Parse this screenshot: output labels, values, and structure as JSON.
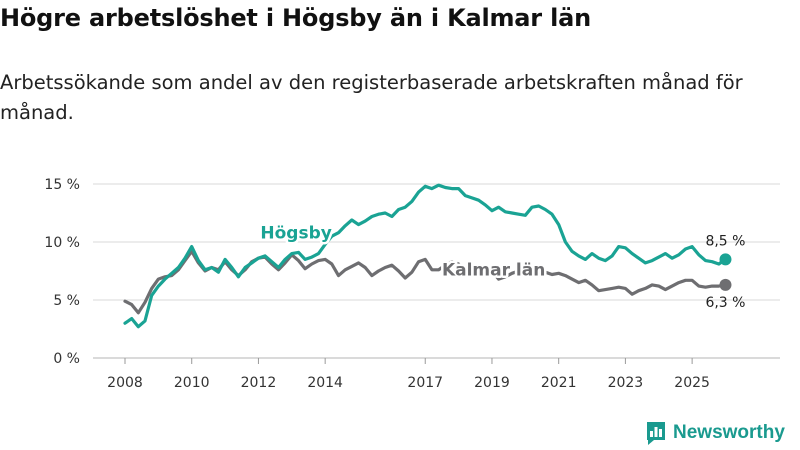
{
  "title": "Högre arbetslöshet i Högsby än i Kalmar län",
  "subtitle": "Arbetssökande som andel av den registerbaserade arbetskraften månad för månad.",
  "brand": {
    "name": "Newsworthy",
    "logo_icon": "bar-chart-logo-icon"
  },
  "colors": {
    "hogsby": "#1aa394",
    "kalmar": "#6e6e71",
    "grid": "#d9d9d9",
    "brand": "#1a9a8f"
  },
  "chart_data": {
    "type": "line",
    "title": "Högre arbetslöshet i Högsby än i Kalmar län",
    "xlabel": "",
    "ylabel": "",
    "xlim": [
      2008,
      2026.6
    ],
    "ylim": [
      0,
      15
    ],
    "y_ticks": [
      {
        "value": 0,
        "label": "0 %"
      },
      {
        "value": 5,
        "label": "5 %"
      },
      {
        "value": 10,
        "label": "10 %"
      },
      {
        "value": 15,
        "label": "15 %"
      }
    ],
    "x_ticks": [
      {
        "value": 2008,
        "label": "2008"
      },
      {
        "value": 2010,
        "label": "2010"
      },
      {
        "value": 2012,
        "label": "2012"
      },
      {
        "value": 2014,
        "label": "2014"
      },
      {
        "value": 2017,
        "label": "2017"
      },
      {
        "value": 2019,
        "label": "2019"
      },
      {
        "value": 2021,
        "label": "2021"
      },
      {
        "value": 2023,
        "label": "2023"
      },
      {
        "value": 2025,
        "label": "2025"
      }
    ],
    "grid": true,
    "series": [
      {
        "name": "Kalmar län",
        "label": "Kalmar län",
        "end_label": "6,3 %",
        "points": [
          [
            2008.0,
            4.9
          ],
          [
            2008.2,
            4.6
          ],
          [
            2008.4,
            3.9
          ],
          [
            2008.6,
            4.8
          ],
          [
            2008.8,
            6.0
          ],
          [
            2009.0,
            6.8
          ],
          [
            2009.2,
            7.0
          ],
          [
            2009.4,
            7.1
          ],
          [
            2009.6,
            7.6
          ],
          [
            2009.8,
            8.4
          ],
          [
            2010.0,
            9.2
          ],
          [
            2010.2,
            8.2
          ],
          [
            2010.4,
            7.5
          ],
          [
            2010.6,
            7.8
          ],
          [
            2010.8,
            7.6
          ],
          [
            2011.0,
            8.3
          ],
          [
            2011.2,
            7.6
          ],
          [
            2011.4,
            7.1
          ],
          [
            2011.6,
            7.6
          ],
          [
            2011.8,
            8.3
          ],
          [
            2012.0,
            8.6
          ],
          [
            2012.2,
            8.7
          ],
          [
            2012.4,
            8.1
          ],
          [
            2012.6,
            7.6
          ],
          [
            2012.8,
            8.2
          ],
          [
            2013.0,
            8.9
          ],
          [
            2013.2,
            8.4
          ],
          [
            2013.4,
            7.7
          ],
          [
            2013.6,
            8.1
          ],
          [
            2013.8,
            8.4
          ],
          [
            2014.0,
            8.5
          ],
          [
            2014.2,
            8.1
          ],
          [
            2014.4,
            7.1
          ],
          [
            2014.6,
            7.6
          ],
          [
            2014.8,
            7.9
          ],
          [
            2015.0,
            8.2
          ],
          [
            2015.2,
            7.8
          ],
          [
            2015.4,
            7.1
          ],
          [
            2015.6,
            7.5
          ],
          [
            2015.8,
            7.8
          ],
          [
            2016.0,
            8.0
          ],
          [
            2016.2,
            7.5
          ],
          [
            2016.4,
            6.9
          ],
          [
            2016.6,
            7.4
          ],
          [
            2016.8,
            8.3
          ],
          [
            2017.0,
            8.5
          ],
          [
            2017.2,
            7.6
          ],
          [
            2017.4,
            7.6
          ],
          [
            2017.6,
            8.0
          ],
          [
            2017.8,
            8.3
          ],
          [
            2018.0,
            8.1
          ],
          [
            2018.2,
            7.4
          ],
          [
            2018.4,
            7.1
          ],
          [
            2018.6,
            7.3
          ],
          [
            2018.8,
            7.6
          ],
          [
            2019.0,
            7.5
          ],
          [
            2019.2,
            6.8
          ],
          [
            2019.4,
            7.0
          ],
          [
            2019.6,
            7.3
          ],
          [
            2019.8,
            7.5
          ],
          [
            2020.0,
            7.6
          ],
          [
            2020.2,
            7.6
          ],
          [
            2020.4,
            7.5
          ],
          [
            2020.6,
            7.4
          ],
          [
            2020.8,
            7.2
          ],
          [
            2021.0,
            7.3
          ],
          [
            2021.2,
            7.1
          ],
          [
            2021.4,
            6.8
          ],
          [
            2021.6,
            6.5
          ],
          [
            2021.8,
            6.7
          ],
          [
            2022.0,
            6.3
          ],
          [
            2022.2,
            5.8
          ],
          [
            2022.4,
            5.9
          ],
          [
            2022.6,
            6.0
          ],
          [
            2022.8,
            6.1
          ],
          [
            2023.0,
            6.0
          ],
          [
            2023.2,
            5.5
          ],
          [
            2023.4,
            5.8
          ],
          [
            2023.6,
            6.0
          ],
          [
            2023.8,
            6.3
          ],
          [
            2024.0,
            6.2
          ],
          [
            2024.2,
            5.9
          ],
          [
            2024.4,
            6.2
          ],
          [
            2024.6,
            6.5
          ],
          [
            2024.8,
            6.7
          ],
          [
            2025.0,
            6.7
          ],
          [
            2025.2,
            6.2
          ],
          [
            2025.4,
            6.1
          ],
          [
            2025.6,
            6.2
          ],
          [
            2025.8,
            6.2
          ],
          [
            2026.0,
            6.3
          ]
        ]
      },
      {
        "name": "Högsby",
        "label": "Högsby",
        "end_label": "8,5 %",
        "points": [
          [
            2008.0,
            3.0
          ],
          [
            2008.2,
            3.4
          ],
          [
            2008.4,
            2.7
          ],
          [
            2008.6,
            3.2
          ],
          [
            2008.8,
            5.4
          ],
          [
            2009.0,
            6.2
          ],
          [
            2009.2,
            6.8
          ],
          [
            2009.4,
            7.3
          ],
          [
            2009.6,
            7.8
          ],
          [
            2009.8,
            8.6
          ],
          [
            2010.0,
            9.6
          ],
          [
            2010.2,
            8.4
          ],
          [
            2010.4,
            7.6
          ],
          [
            2010.6,
            7.8
          ],
          [
            2010.8,
            7.4
          ],
          [
            2011.0,
            8.5
          ],
          [
            2011.2,
            7.8
          ],
          [
            2011.4,
            7.0
          ],
          [
            2011.6,
            7.8
          ],
          [
            2011.8,
            8.2
          ],
          [
            2012.0,
            8.6
          ],
          [
            2012.2,
            8.8
          ],
          [
            2012.4,
            8.3
          ],
          [
            2012.6,
            7.8
          ],
          [
            2012.8,
            8.5
          ],
          [
            2013.0,
            9.0
          ],
          [
            2013.2,
            9.1
          ],
          [
            2013.4,
            8.5
          ],
          [
            2013.6,
            8.7
          ],
          [
            2013.8,
            9.0
          ],
          [
            2014.0,
            9.8
          ],
          [
            2014.2,
            10.5
          ],
          [
            2014.4,
            10.8
          ],
          [
            2014.6,
            11.4
          ],
          [
            2014.8,
            11.9
          ],
          [
            2015.0,
            11.5
          ],
          [
            2015.2,
            11.8
          ],
          [
            2015.4,
            12.2
          ],
          [
            2015.6,
            12.4
          ],
          [
            2015.8,
            12.5
          ],
          [
            2016.0,
            12.2
          ],
          [
            2016.2,
            12.8
          ],
          [
            2016.4,
            13.0
          ],
          [
            2016.6,
            13.5
          ],
          [
            2016.8,
            14.3
          ],
          [
            2017.0,
            14.8
          ],
          [
            2017.2,
            14.6
          ],
          [
            2017.4,
            14.9
          ],
          [
            2017.6,
            14.7
          ],
          [
            2017.8,
            14.6
          ],
          [
            2018.0,
            14.6
          ],
          [
            2018.2,
            14.0
          ],
          [
            2018.4,
            13.8
          ],
          [
            2018.6,
            13.6
          ],
          [
            2018.8,
            13.2
          ],
          [
            2019.0,
            12.7
          ],
          [
            2019.2,
            13.0
          ],
          [
            2019.4,
            12.6
          ],
          [
            2019.6,
            12.5
          ],
          [
            2019.8,
            12.4
          ],
          [
            2020.0,
            12.3
          ],
          [
            2020.2,
            13.0
          ],
          [
            2020.4,
            13.1
          ],
          [
            2020.6,
            12.8
          ],
          [
            2020.8,
            12.4
          ],
          [
            2021.0,
            11.5
          ],
          [
            2021.2,
            10.0
          ],
          [
            2021.4,
            9.2
          ],
          [
            2021.6,
            8.8
          ],
          [
            2021.8,
            8.5
          ],
          [
            2022.0,
            9.0
          ],
          [
            2022.2,
            8.6
          ],
          [
            2022.4,
            8.4
          ],
          [
            2022.6,
            8.8
          ],
          [
            2022.8,
            9.6
          ],
          [
            2023.0,
            9.5
          ],
          [
            2023.2,
            9.0
          ],
          [
            2023.4,
            8.6
          ],
          [
            2023.6,
            8.2
          ],
          [
            2023.8,
            8.4
          ],
          [
            2024.0,
            8.7
          ],
          [
            2024.2,
            9.0
          ],
          [
            2024.4,
            8.6
          ],
          [
            2024.6,
            8.9
          ],
          [
            2024.8,
            9.4
          ],
          [
            2025.0,
            9.6
          ],
          [
            2025.2,
            8.9
          ],
          [
            2025.4,
            8.4
          ],
          [
            2025.6,
            8.3
          ],
          [
            2025.8,
            8.1
          ],
          [
            2026.0,
            8.5
          ]
        ]
      }
    ]
  }
}
